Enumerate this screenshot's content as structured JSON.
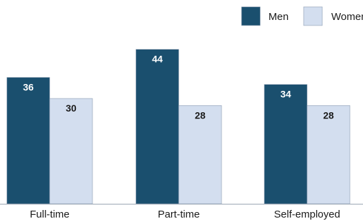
{
  "chart_data": {
    "type": "bar",
    "categories": [
      "Full-time",
      "Part-time",
      "Self-employed"
    ],
    "series": [
      {
        "name": "Men",
        "values": [
          36,
          44,
          34
        ],
        "color": "#1a4f6e",
        "label_color": "#ffffff"
      },
      {
        "name": "Women",
        "values": [
          30,
          28,
          28
        ],
        "color": "#d3deef",
        "label_color": "#1a1a1a"
      }
    ],
    "ylim": [
      0,
      51
    ],
    "legend": "top-right",
    "grid": false
  }
}
